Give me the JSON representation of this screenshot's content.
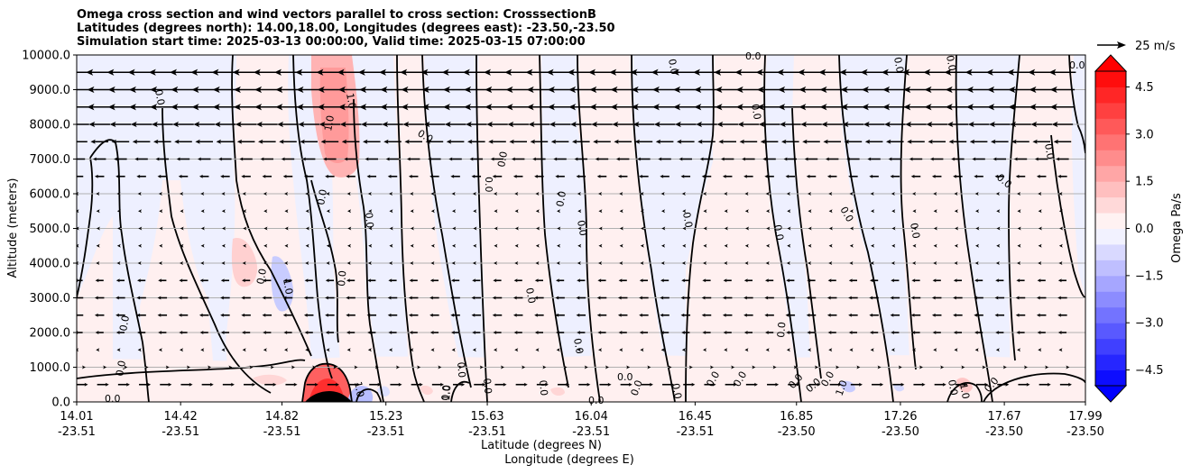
{
  "title_lines": [
    "Omega cross section and wind vectors parallel to cross section: CrosssectionB",
    "Latitudes (degrees north): 14.00,18.00, Longitudes (degrees east): -23.50,-23.50",
    "Simulation start time: 2025-03-13 00:00:00, Valid time: 2025-03-15 07:00:00"
  ],
  "chart_data": {
    "type": "heatmap",
    "title": "Omega cross section and wind vectors parallel to cross section: CrosssectionB",
    "ylabel": "Altitude (meters)",
    "xlabel_lines": [
      "Latitude (degrees N)",
      "Longitude (degrees E)"
    ],
    "ylim": [
      0,
      10000
    ],
    "y_ticks": [
      0,
      1000,
      2000,
      3000,
      4000,
      5000,
      6000,
      7000,
      8000,
      9000,
      10000
    ],
    "y_tick_labels": [
      "0.0",
      "1000.0",
      "2000.0",
      "3000.0",
      "4000.0",
      "5000.0",
      "6000.0",
      "7000.0",
      "8000.0",
      "9000.0",
      "10000.0"
    ],
    "x_ticks": [
      {
        "lat": "14.01",
        "lon": "-23.51"
      },
      {
        "lat": "14.42",
        "lon": "-23.51"
      },
      {
        "lat": "14.82",
        "lon": "-23.51"
      },
      {
        "lat": "15.23",
        "lon": "-23.51"
      },
      {
        "lat": "15.63",
        "lon": "-23.51"
      },
      {
        "lat": "16.04",
        "lon": "-23.51"
      },
      {
        "lat": "16.45",
        "lon": "-23.51"
      },
      {
        "lat": "16.85",
        "lon": "-23.50"
      },
      {
        "lat": "17.26",
        "lon": "-23.50"
      },
      {
        "lat": "17.67",
        "lon": "-23.50"
      },
      {
        "lat": "17.99",
        "lon": "-23.50"
      }
    ],
    "grid": "horizontal",
    "colorbar": {
      "label": "Omega Pa/s",
      "range": [
        -5.0,
        5.0
      ],
      "ticks": [
        -4.5,
        -3.0,
        -1.5,
        0.0,
        1.5,
        3.0,
        4.5
      ],
      "tick_labels": [
        "−4.5",
        "−3.0",
        "−1.5",
        "0.0",
        "1.5",
        "3.0",
        "4.5"
      ],
      "cmap": "bwr",
      "extend": "both"
    },
    "quiver_key": "25 m/s",
    "contour_label": "0.0",
    "contour_label_secondary": "1.0",
    "omega_features": [
      {
        "name": "upper updraft column",
        "lat": 14.93,
        "z_bottom": 6500,
        "z_top": 10000,
        "omega": 1.5
      },
      {
        "name": "surface updraft",
        "lat": 14.96,
        "z_bottom": 0,
        "z_top": 900,
        "omega": 3.0
      },
      {
        "name": "surface downdraft",
        "lat": 15.05,
        "z_bottom": 0,
        "z_top": 500,
        "omega": -1.0
      },
      {
        "name": "mid-level downdraft",
        "lat": 14.8,
        "z_bottom": 2800,
        "z_top": 4200,
        "omega": -1.0
      },
      {
        "name": "mid-level updraft",
        "lat": 14.65,
        "z_bottom": 3200,
        "z_top": 4600,
        "omega": 0.5
      }
    ],
    "wind_rows": [
      {
        "z": 9500,
        "u": -1.0
      },
      {
        "z": 9000,
        "u": -0.9
      },
      {
        "z": 8500,
        "u": -0.9
      },
      {
        "z": 8000,
        "u": -0.75
      },
      {
        "z": 7500,
        "u": -0.6
      },
      {
        "z": 7000,
        "u": -0.4
      },
      {
        "z": 6500,
        "u": -0.25
      },
      {
        "z": 6000,
        "u": -0.15
      },
      {
        "z": 5500,
        "u": -0.12
      },
      {
        "z": 5000,
        "u": -0.1
      },
      {
        "z": 4500,
        "u": -0.12
      },
      {
        "z": 4000,
        "u": -0.15
      },
      {
        "z": 3500,
        "u": -0.2
      },
      {
        "z": 3000,
        "u": -0.25
      },
      {
        "z": 2500,
        "u": -0.25
      },
      {
        "z": 2000,
        "u": -0.2
      },
      {
        "z": 1500,
        "u": -0.15
      },
      {
        "z": 1000,
        "u": 0.15
      },
      {
        "z": 500,
        "u": 0.35
      }
    ]
  },
  "colors": {
    "neg_fill": "#eef0ff",
    "pos_fill": "#fff0f0",
    "contour": "#000000",
    "grid": "#b0b0b0"
  }
}
